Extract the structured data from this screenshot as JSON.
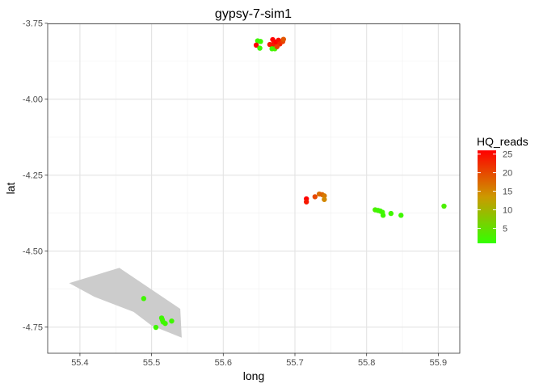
{
  "chart_data": {
    "type": "scatter",
    "title": "gypsy-7-sim1",
    "xlabel": "long",
    "ylabel": "lat",
    "xlim": [
      55.355,
      55.93
    ],
    "ylim": [
      -4.836,
      -3.752
    ],
    "x_ticks": [
      55.4,
      55.5,
      55.6,
      55.7,
      55.8,
      55.9
    ],
    "x_tick_labels": [
      "55.4",
      "55.5",
      "55.6",
      "55.7",
      "55.8",
      "55.9"
    ],
    "y_ticks": [
      -3.75,
      -4.0,
      -4.25,
      -4.5,
      -4.75
    ],
    "y_tick_labels": [
      "-3.75",
      "-4.00",
      "-4.25",
      "-4.50",
      "-4.75"
    ],
    "grid": true,
    "legend": {
      "title": "HQ_reads",
      "placement": "right",
      "range": [
        1,
        26
      ],
      "ticks": [
        25,
        20,
        15,
        10,
        5
      ],
      "tick_labels": [
        "25",
        "20",
        "15",
        "10",
        "5"
      ],
      "color_low": "#33ff00",
      "color_mid": "#cc9900",
      "color_high": "#ff0000"
    },
    "polygon": {
      "fill": "#cccccc",
      "points": [
        [
          55.385,
          -4.605
        ],
        [
          55.455,
          -4.555
        ],
        [
          55.54,
          -4.69
        ],
        [
          55.542,
          -4.785
        ],
        [
          55.5,
          -4.745
        ],
        [
          55.475,
          -4.7
        ],
        [
          55.42,
          -4.65
        ]
      ]
    },
    "points": [
      {
        "x": 55.648,
        "y": -3.808,
        "reads": 2
      },
      {
        "x": 55.652,
        "y": -3.81,
        "reads": 2
      },
      {
        "x": 55.646,
        "y": -3.822,
        "reads": 26
      },
      {
        "x": 55.651,
        "y": -3.832,
        "reads": 2
      },
      {
        "x": 55.665,
        "y": -3.82,
        "reads": 24
      },
      {
        "x": 55.669,
        "y": -3.804,
        "reads": 26
      },
      {
        "x": 55.671,
        "y": -3.815,
        "reads": 25
      },
      {
        "x": 55.674,
        "y": -3.812,
        "reads": 26
      },
      {
        "x": 55.677,
        "y": -3.806,
        "reads": 25
      },
      {
        "x": 55.679,
        "y": -3.818,
        "reads": 23
      },
      {
        "x": 55.683,
        "y": -3.81,
        "reads": 21
      },
      {
        "x": 55.684,
        "y": -3.803,
        "reads": 19
      },
      {
        "x": 55.67,
        "y": -3.825,
        "reads": 24
      },
      {
        "x": 55.668,
        "y": -3.834,
        "reads": 2
      },
      {
        "x": 55.672,
        "y": -3.834,
        "reads": 3
      },
      {
        "x": 55.675,
        "y": -3.827,
        "reads": 21
      },
      {
        "x": 55.716,
        "y": -4.328,
        "reads": 26
      },
      {
        "x": 55.716,
        "y": -4.338,
        "reads": 24
      },
      {
        "x": 55.728,
        "y": -4.321,
        "reads": 20
      },
      {
        "x": 55.734,
        "y": -4.312,
        "reads": 17
      },
      {
        "x": 55.738,
        "y": -4.314,
        "reads": 18
      },
      {
        "x": 55.741,
        "y": -4.318,
        "reads": 16
      },
      {
        "x": 55.741,
        "y": -4.33,
        "reads": 15
      },
      {
        "x": 55.812,
        "y": -4.364,
        "reads": 3
      },
      {
        "x": 55.816,
        "y": -4.366,
        "reads": 2
      },
      {
        "x": 55.819,
        "y": -4.368,
        "reads": 2
      },
      {
        "x": 55.822,
        "y": -4.372,
        "reads": 2
      },
      {
        "x": 55.823,
        "y": -4.382,
        "reads": 2
      },
      {
        "x": 55.834,
        "y": -4.376,
        "reads": 2
      },
      {
        "x": 55.848,
        "y": -4.382,
        "reads": 2
      },
      {
        "x": 55.908,
        "y": -4.352,
        "reads": 3
      },
      {
        "x": 55.489,
        "y": -4.656,
        "reads": 2
      },
      {
        "x": 55.514,
        "y": -4.72,
        "reads": 2
      },
      {
        "x": 55.515,
        "y": -4.726,
        "reads": 2
      },
      {
        "x": 55.516,
        "y": -4.733,
        "reads": 2
      },
      {
        "x": 55.519,
        "y": -4.738,
        "reads": 2
      },
      {
        "x": 55.528,
        "y": -4.73,
        "reads": 2
      },
      {
        "x": 55.506,
        "y": -4.751,
        "reads": 2
      }
    ]
  }
}
